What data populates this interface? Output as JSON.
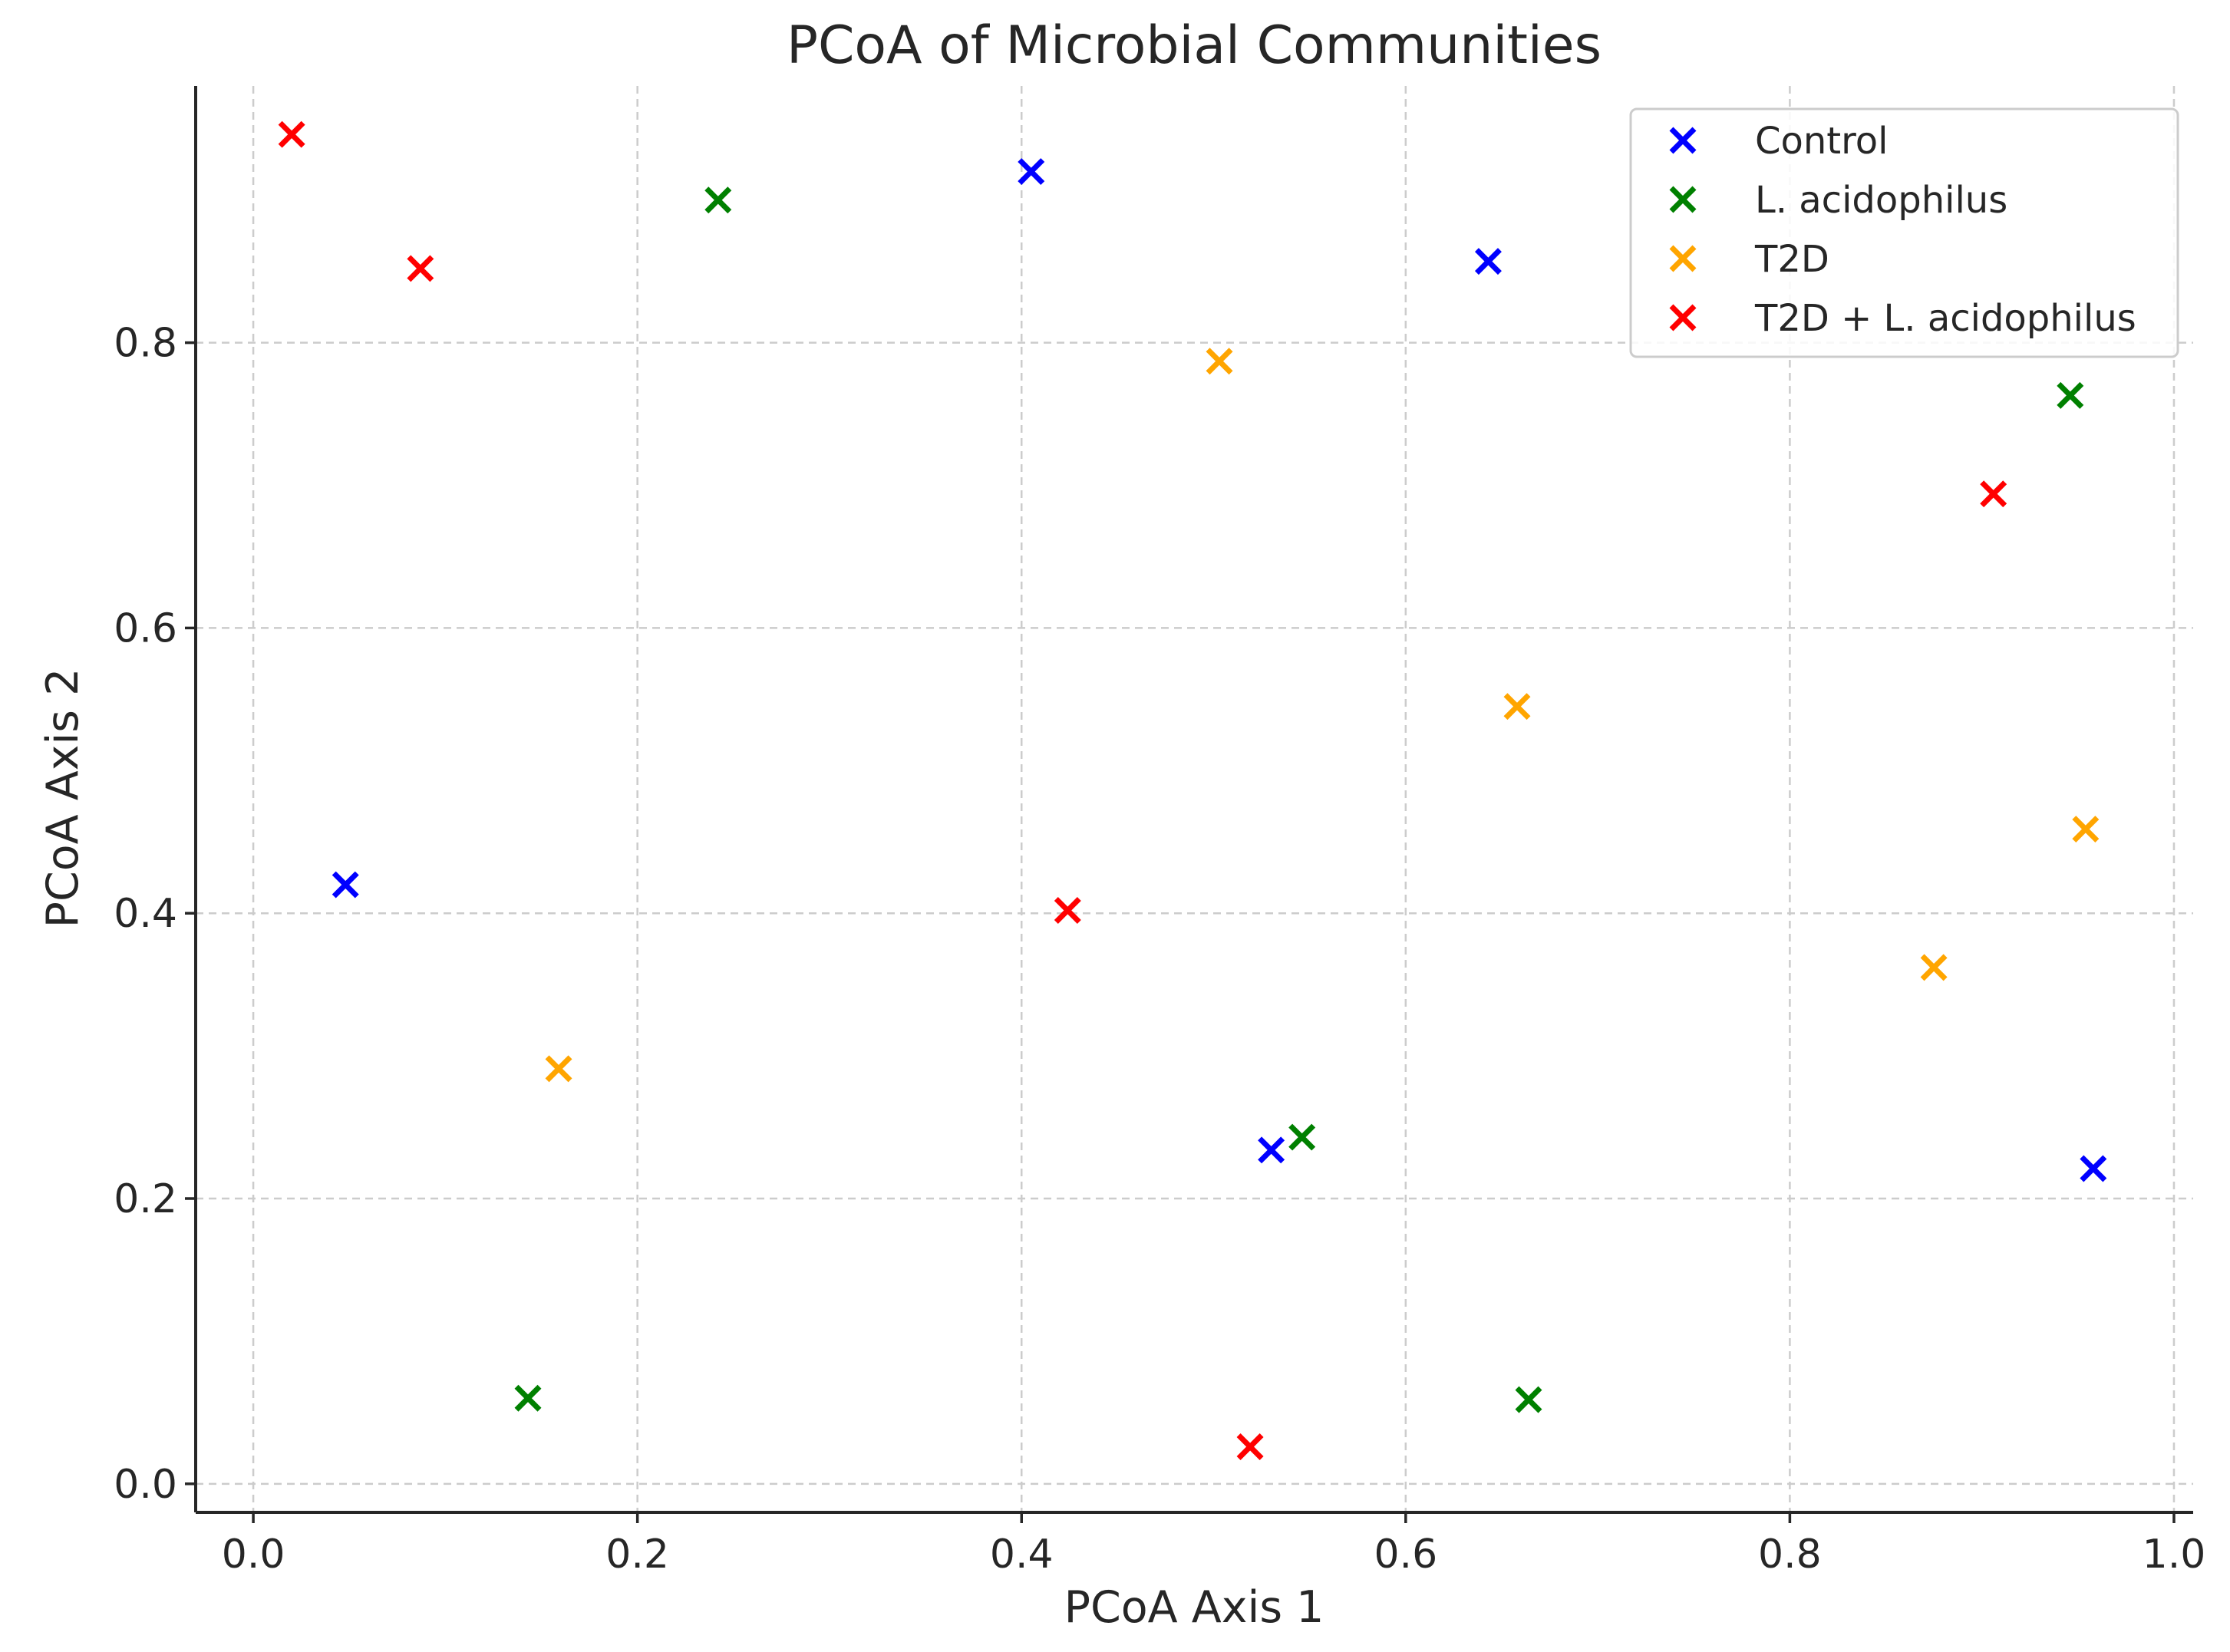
{
  "chart_data": {
    "type": "scatter",
    "title": "PCoA of Microbial Communities",
    "xlabel": "PCoA Axis 1",
    "ylabel": "PCoA Axis 2",
    "xlim": [
      -0.03,
      1.01
    ],
    "ylim": [
      -0.02,
      0.98
    ],
    "xticks": [
      0.0,
      0.2,
      0.4,
      0.6,
      0.8,
      1.0
    ],
    "xtick_labels": [
      "0.0",
      "0.2",
      "0.4",
      "0.6",
      "0.8",
      "1.0"
    ],
    "yticks": [
      0.0,
      0.2,
      0.4,
      0.6,
      0.8
    ],
    "ytick_labels": [
      "0.0",
      "0.2",
      "0.4",
      "0.6",
      "0.8"
    ],
    "grid": true,
    "marker": "x",
    "legend_position": "top-right",
    "series": [
      {
        "name": "Control",
        "color": "#0000ff",
        "points": [
          {
            "x": 0.048,
            "y": 0.42
          },
          {
            "x": 0.405,
            "y": 0.92
          },
          {
            "x": 0.643,
            "y": 0.857
          },
          {
            "x": 0.53,
            "y": 0.234
          },
          {
            "x": 0.958,
            "y": 0.221
          }
        ]
      },
      {
        "name": "L. acidophilus",
        "color": "#008000",
        "points": [
          {
            "x": 0.242,
            "y": 0.9
          },
          {
            "x": 0.946,
            "y": 0.763
          },
          {
            "x": 0.546,
            "y": 0.243
          },
          {
            "x": 0.143,
            "y": 0.06
          },
          {
            "x": 0.664,
            "y": 0.059
          }
        ]
      },
      {
        "name": "T2D",
        "color": "#ffa500",
        "points": [
          {
            "x": 0.503,
            "y": 0.787
          },
          {
            "x": 0.658,
            "y": 0.545
          },
          {
            "x": 0.954,
            "y": 0.459
          },
          {
            "x": 0.875,
            "y": 0.362
          },
          {
            "x": 0.159,
            "y": 0.291
          }
        ]
      },
      {
        "name": "T2D + L. acidophilus",
        "color": "#ff0000",
        "points": [
          {
            "x": 0.02,
            "y": 0.946
          },
          {
            "x": 0.087,
            "y": 0.852
          },
          {
            "x": 0.906,
            "y": 0.694
          },
          {
            "x": 0.424,
            "y": 0.402
          },
          {
            "x": 0.519,
            "y": 0.026
          }
        ]
      }
    ]
  }
}
